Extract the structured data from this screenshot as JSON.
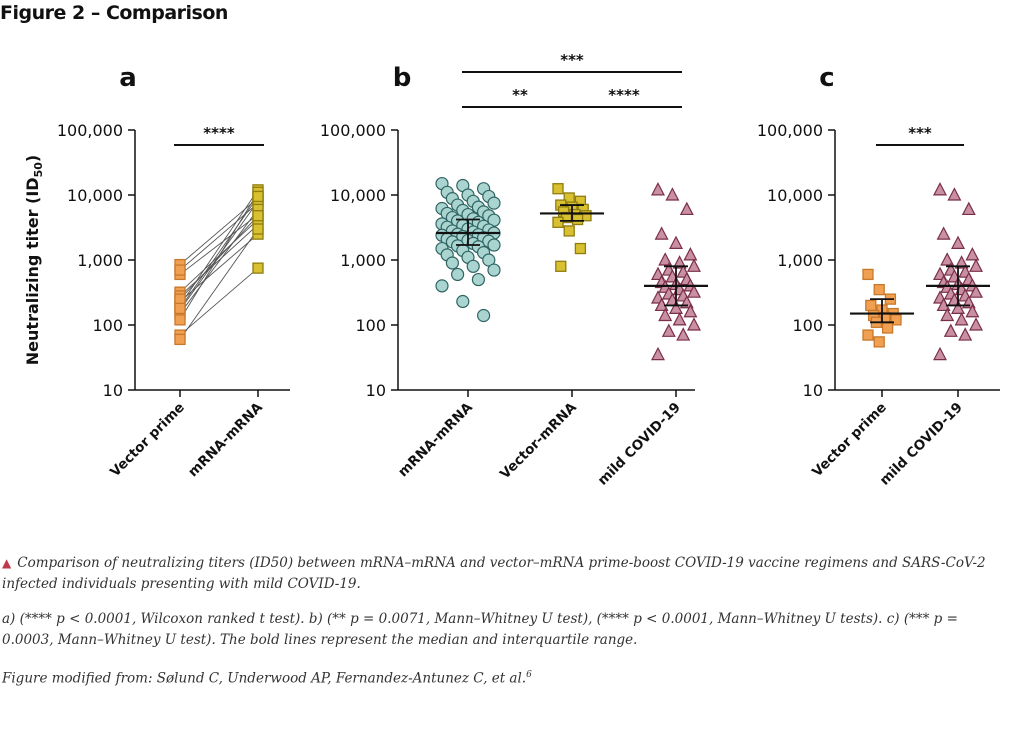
{
  "figure_title": "Figure 2 – Comparison",
  "caption": {
    "arrow_icon": "triangle-up-icon",
    "p1": "Comparison of neutralizing titers (ID50) between mRNA–mRNA and vector–mRNA prime-boost COVID-19 vaccine regimens and SARS-CoV-2 infected individuals presenting with mild COVID-19.",
    "p2": "a) (**** p < 0.0001, Wilcoxon ranked t test). b) (** p = 0.0071, Mann–Whitney U test), (**** p < 0.0001, Mann–Whitney U tests). c) (*** p = 0.0003, Mann–Whitney U test). The bold lines represent the median and interquartile range.",
    "p3": "Figure modified from: Sølund C, Underwood AP, Fernandez-Antunez C, et al.",
    "p3_ref": "6"
  },
  "colors": {
    "vector": "#f0a050",
    "vector_edge": "#c8782a",
    "mrna": "#d8c030",
    "mrna_edge": "#8f7d10",
    "teal": "#a9d4d0",
    "teal_edge": "#2f6462",
    "covid": "#c98fa2",
    "covid_edge": "#7a2f48"
  },
  "chart_data": [
    {
      "panel": "a",
      "type": "scatter",
      "ylabel": "Neutralizing titer (ID",
      "ylabel_sub": "50",
      "ylabel_close": ")",
      "yscale": "log",
      "ylim": [
        10,
        100000
      ],
      "yticks": [
        "10",
        "100",
        "1,000",
        "10,000",
        "100,000"
      ],
      "categories": [
        "Vector prime",
        "mRNA-mRNA"
      ],
      "paired": true,
      "series": [
        {
          "values": [
            600,
            850,
            700,
            320,
            280,
            230,
            200,
            170,
            150,
            120,
            70,
            60,
            250,
            180
          ]
        },
        {
          "values": [
            5000,
            9000,
            7500,
            4200,
            3500,
            2500,
            12000,
            8000,
            6000,
            11000,
            750,
            3000,
            4800,
            9500
          ]
        }
      ],
      "significance": [
        {
          "from": 0,
          "to": 1,
          "label": "****"
        }
      ]
    },
    {
      "panel": "b",
      "type": "scatter",
      "yscale": "log",
      "ylim": [
        10,
        100000
      ],
      "yticks": [
        "10",
        "100",
        "1,000",
        "10,000",
        "100,000"
      ],
      "categories": [
        "mRNA-mRNA",
        "Vector-mRNA",
        "mild COVID-19"
      ],
      "series": [
        {
          "median": 2600,
          "q1": 1700,
          "q3": 4200,
          "values": [
            15000,
            14000,
            12500,
            11000,
            10000,
            9500,
            8800,
            8000,
            7500,
            7000,
            6500,
            6200,
            5800,
            5500,
            5200,
            5000,
            4800,
            4500,
            4300,
            4100,
            4000,
            3800,
            3600,
            3400,
            3300,
            3200,
            3000,
            2900,
            2800,
            2700,
            2600,
            2500,
            2450,
            2400,
            2300,
            2200,
            2100,
            2000,
            1950,
            1900,
            1800,
            1700,
            1650,
            1600,
            1500,
            1400,
            1300,
            1200,
            1100,
            1000,
            900,
            800,
            700,
            600,
            500,
            400,
            230,
            140
          ]
        },
        {
          "median": 5200,
          "q1": 4000,
          "q3": 7000,
          "values": [
            12500,
            9000,
            8000,
            7000,
            6500,
            6000,
            5500,
            5000,
            4800,
            4500,
            4200,
            3800,
            2800,
            1500,
            800
          ]
        },
        {
          "median": 400,
          "q1": 200,
          "q3": 800,
          "values": [
            12000,
            10000,
            6000,
            2500,
            1800,
            1200,
            1000,
            900,
            800,
            700,
            650,
            600,
            550,
            500,
            450,
            420,
            400,
            380,
            350,
            320,
            300,
            280,
            260,
            240,
            220,
            200,
            180,
            160,
            140,
            120,
            100,
            80,
            70,
            35
          ]
        }
      ],
      "significance": [
        {
          "from": 0,
          "to": 1,
          "label": "**",
          "level": 1
        },
        {
          "from": 1,
          "to": 2,
          "label": "****",
          "level": 1
        },
        {
          "from": 0,
          "to": 2,
          "label": "***",
          "level": 2
        }
      ]
    },
    {
      "panel": "c",
      "type": "scatter",
      "yscale": "log",
      "ylim": [
        10,
        100000
      ],
      "yticks": [
        "10",
        "100",
        "1,000",
        "10,000",
        "100,000"
      ],
      "categories": [
        "Vector prime",
        "mild COVID-19"
      ],
      "series": [
        {
          "median": 150,
          "q1": 110,
          "q3": 250,
          "values": [
            600,
            350,
            250,
            200,
            170,
            150,
            140,
            130,
            120,
            110,
            90,
            70,
            55
          ]
        },
        {
          "median": 400,
          "q1": 200,
          "q3": 800,
          "values": [
            12000,
            10000,
            6000,
            2500,
            1800,
            1200,
            1000,
            900,
            800,
            700,
            650,
            600,
            550,
            500,
            450,
            420,
            400,
            380,
            350,
            320,
            300,
            280,
            260,
            240,
            220,
            200,
            180,
            160,
            140,
            120,
            100,
            80,
            70,
            35
          ]
        }
      ],
      "significance": [
        {
          "from": 0,
          "to": 1,
          "label": "***",
          "level": 1
        }
      ]
    }
  ]
}
